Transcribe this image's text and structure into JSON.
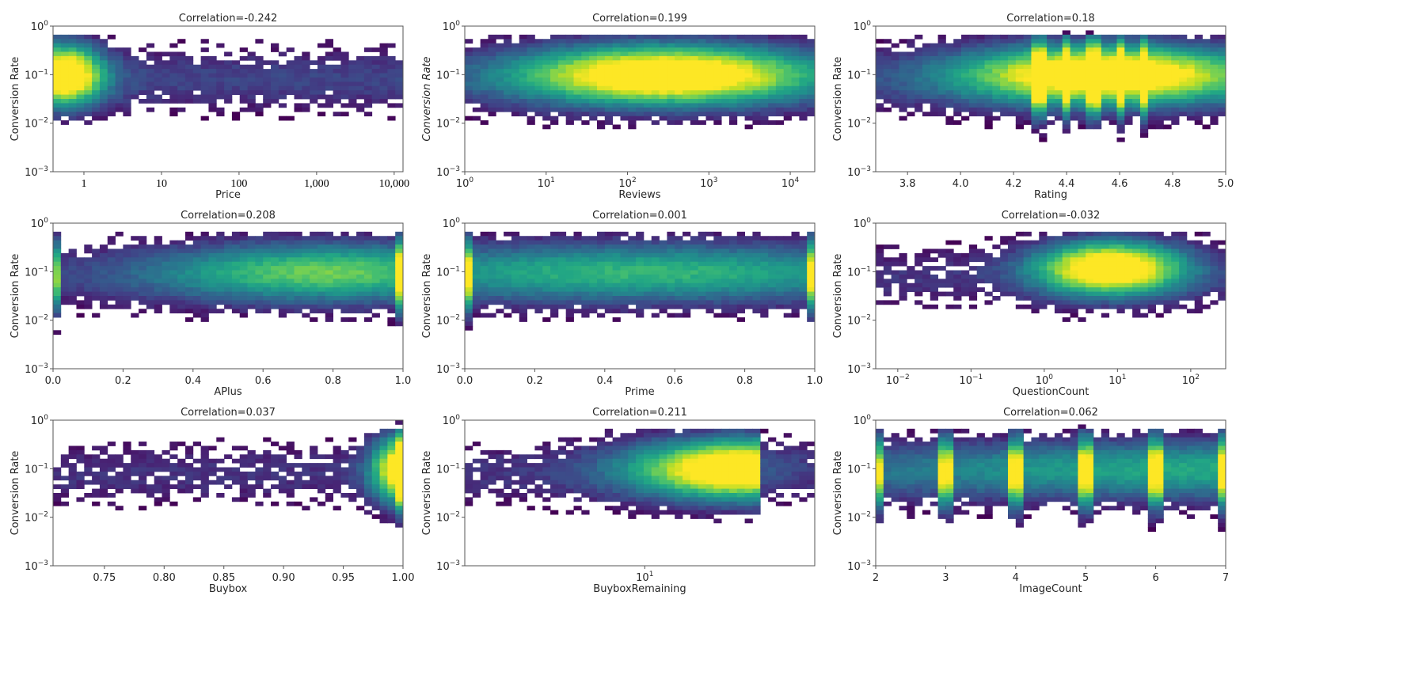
{
  "chart_data": [
    {
      "type": "heatmap",
      "title": "Correlation=-0.242",
      "correlation": -0.242,
      "xlabel": "Price",
      "ylabel": "Conversion Rate",
      "xscale": "log",
      "xlim": [
        0.4,
        13000
      ],
      "ylim": [
        0.001,
        1
      ],
      "xticks": [
        {
          "v": 1,
          "t": "1"
        },
        {
          "v": 10,
          "t": "10"
        },
        {
          "v": 100,
          "t": "100"
        },
        {
          "v": 1000,
          "t": "1,000"
        },
        {
          "v": 10000,
          "t": "10,000"
        }
      ],
      "density": {
        "peaks": [
          {
            "x": 0.55,
            "y": 0.1,
            "sx": 0.35,
            "sy": 0.45,
            "w": 1.0
          }
        ],
        "tail": {
          "toward": "high-x",
          "decay": 0.9
        }
      },
      "colormap": "viridis"
    },
    {
      "type": "heatmap",
      "title": "Correlation=0.199",
      "correlation": 0.199,
      "xlabel": "Reviews",
      "ylabel": "Conversion Rate",
      "xscale": "log",
      "xlim": [
        1,
        20000
      ],
      "ylim": [
        0.001,
        1
      ],
      "xticks": [
        {
          "v": 1,
          "t": "10^0"
        },
        {
          "v": 10,
          "t": "10^1"
        },
        {
          "v": 100,
          "t": "10^2"
        },
        {
          "v": 1000,
          "t": "10^3"
        },
        {
          "v": 10000,
          "t": "10^4"
        }
      ],
      "density": {
        "peaks": [
          {
            "x": 300,
            "y": 0.1,
            "sx": 1.3,
            "sy": 0.45,
            "w": 1.0
          }
        ]
      },
      "colormap": "viridis"
    },
    {
      "type": "heatmap",
      "title": "Correlation=0.18",
      "correlation": 0.18,
      "xlabel": "Rating",
      "ylabel": "Conversion Rate",
      "xscale": "linear",
      "xlim": [
        3.68,
        5.0
      ],
      "ylim": [
        0.001,
        1
      ],
      "xticks": [
        {
          "v": 3.8,
          "t": "3.8"
        },
        {
          "v": 4.0,
          "t": "4.0"
        },
        {
          "v": 4.2,
          "t": "4.2"
        },
        {
          "v": 4.4,
          "t": "4.4"
        },
        {
          "v": 4.6,
          "t": "4.6"
        },
        {
          "v": 4.8,
          "t": "4.8"
        },
        {
          "v": 5.0,
          "t": "5.0"
        }
      ],
      "density": {
        "peaks": [
          {
            "x": 4.55,
            "y": 0.1,
            "sx": 0.3,
            "sy": 0.45,
            "w": 1.0
          }
        ],
        "stripes": [
          4.3,
          4.4,
          4.5,
          4.6,
          4.7
        ]
      },
      "colormap": "viridis"
    },
    {
      "type": "heatmap",
      "title": "Correlation=0.208",
      "correlation": 0.208,
      "xlabel": "APlus",
      "ylabel": "Conversion Rate",
      "xscale": "linear",
      "xlim": [
        0.0,
        1.0
      ],
      "ylim": [
        0.001,
        1
      ],
      "xticks": [
        {
          "v": 0.0,
          "t": "0.0"
        },
        {
          "v": 0.2,
          "t": "0.2"
        },
        {
          "v": 0.4,
          "t": "0.4"
        },
        {
          "v": 0.6,
          "t": "0.6"
        },
        {
          "v": 0.8,
          "t": "0.8"
        },
        {
          "v": 1.0,
          "t": "1.0"
        }
      ],
      "density": {
        "peaks": [
          {
            "x": 0.78,
            "y": 0.1,
            "sx": 0.35,
            "sy": 0.45,
            "w": 0.55
          }
        ],
        "stripes": [
          0.0,
          1.0
        ]
      },
      "colormap": "viridis"
    },
    {
      "type": "heatmap",
      "title": "Correlation=0.001",
      "correlation": 0.001,
      "xlabel": "Prime",
      "ylabel": "Conversion Rate",
      "xscale": "linear",
      "xlim": [
        0.0,
        1.0
      ],
      "ylim": [
        0.001,
        1
      ],
      "xticks": [
        {
          "v": 0.0,
          "t": "0.0"
        },
        {
          "v": 0.2,
          "t": "0.2"
        },
        {
          "v": 0.4,
          "t": "0.4"
        },
        {
          "v": 0.6,
          "t": "0.6"
        },
        {
          "v": 0.8,
          "t": "0.8"
        },
        {
          "v": 1.0,
          "t": "1.0"
        }
      ],
      "density": {
        "peaks": [
          {
            "x": 0.5,
            "y": 0.1,
            "sx": 0.6,
            "sy": 0.45,
            "w": 0.45
          }
        ],
        "stripes": [
          0.0,
          1.0
        ]
      },
      "colormap": "viridis"
    },
    {
      "type": "heatmap",
      "title": "Correlation=-0.032",
      "correlation": -0.032,
      "xlabel": "QuestionCount",
      "ylabel": "Conversion Rate",
      "xscale": "log",
      "xlim": [
        0.005,
        300
      ],
      "ylim": [
        0.001,
        1
      ],
      "xticks": [
        {
          "v": 0.01,
          "t": "10^-2"
        },
        {
          "v": 0.1,
          "t": "10^-1"
        },
        {
          "v": 1,
          "t": "10^0"
        },
        {
          "v": 10,
          "t": "10^1"
        },
        {
          "v": 100,
          "t": "10^2"
        }
      ],
      "density": {
        "peaks": [
          {
            "x": 8,
            "y": 0.12,
            "sx": 0.7,
            "sy": 0.4,
            "w": 1.0
          }
        ]
      },
      "colormap": "viridis"
    },
    {
      "type": "heatmap",
      "title": "Correlation=0.037",
      "correlation": 0.037,
      "xlabel": "Buybox",
      "ylabel": "Conversion Rate",
      "xscale": "linear",
      "xlim": [
        0.707,
        1.0
      ],
      "ylim": [
        0.001,
        1
      ],
      "xticks": [
        {
          "v": 0.75,
          "t": "0.75"
        },
        {
          "v": 0.8,
          "t": "0.80"
        },
        {
          "v": 0.85,
          "t": "0.85"
        },
        {
          "v": 0.9,
          "t": "0.90"
        },
        {
          "v": 0.95,
          "t": "0.95"
        },
        {
          "v": 1.0,
          "t": "1.00"
        }
      ],
      "density": {
        "peaks": [
          {
            "x": 1.0,
            "y": 0.1,
            "sx": 0.06,
            "sy": 0.5,
            "w": 1.0
          }
        ],
        "stripes": [
          1.0
        ]
      },
      "colormap": "viridis"
    },
    {
      "type": "heatmap",
      "title": "Correlation=0.211",
      "correlation": 0.211,
      "xlabel": "BuyboxRemaining",
      "ylabel": "Conversion Rate",
      "xscale": "log",
      "xlim": [
        1.5,
        60
      ],
      "ylim": [
        0.001,
        1
      ],
      "xticks": [
        {
          "v": 10,
          "t": "10^1"
        }
      ],
      "density": {
        "peaks": [
          {
            "x": 28,
            "y": 0.1,
            "sx": 0.35,
            "sy": 0.45,
            "w": 1.0
          }
        ],
        "cutoff": 30
      },
      "colormap": "viridis"
    },
    {
      "type": "heatmap",
      "title": "Correlation=0.062",
      "correlation": 0.062,
      "xlabel": "ImageCount",
      "ylabel": "Conversion Rate",
      "xscale": "linear",
      "xlim": [
        2,
        7
      ],
      "ylim": [
        0.001,
        1
      ],
      "xticks": [
        {
          "v": 2,
          "t": "2"
        },
        {
          "v": 3,
          "t": "3"
        },
        {
          "v": 4,
          "t": "4"
        },
        {
          "v": 5,
          "t": "5"
        },
        {
          "v": 6,
          "t": "6"
        },
        {
          "v": 7,
          "t": "7"
        }
      ],
      "density": {
        "peaks": [
          {
            "x": 6.8,
            "y": 0.1,
            "sx": 0.8,
            "sy": 0.45,
            "w": 0.4
          }
        ],
        "stripes": [
          2,
          3,
          4,
          5,
          6,
          7
        ]
      },
      "colormap": "viridis"
    }
  ],
  "yticks": [
    {
      "v": 1,
      "t": "10^0"
    },
    {
      "v": 0.1,
      "t": "10^-1"
    },
    {
      "v": 0.01,
      "t": "10^-2"
    },
    {
      "v": 0.001,
      "t": "10^-3"
    }
  ]
}
